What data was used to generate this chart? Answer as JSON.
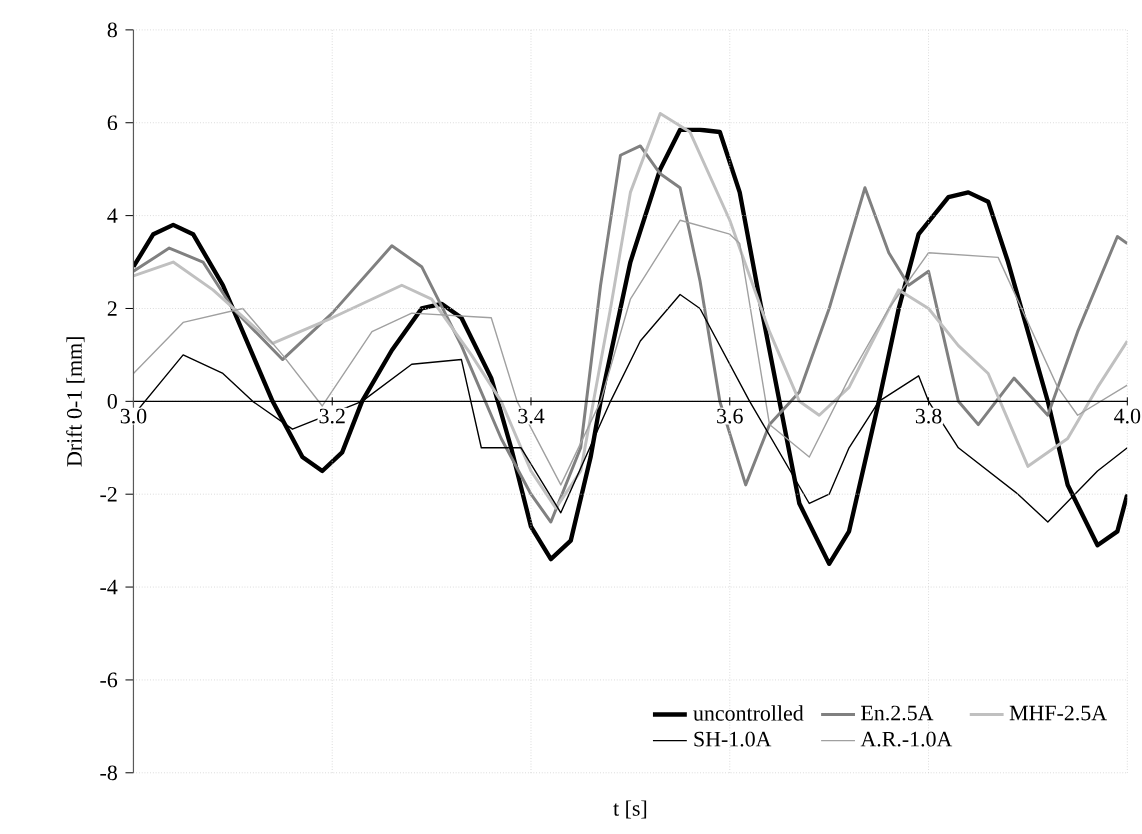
{
  "chart_data": {
    "type": "line",
    "xlabel": "t [s]",
    "ylabel": "Drift 0-1 [mm]",
    "xlim": [
      3.0,
      4.0
    ],
    "ylim": [
      -8,
      8
    ],
    "xticks": [
      {
        "value": 3.0,
        "label": "3.0"
      },
      {
        "value": 3.2,
        "label": "3.2"
      },
      {
        "value": 3.4,
        "label": "3.4"
      },
      {
        "value": 3.6,
        "label": "3.6"
      },
      {
        "value": 3.8,
        "label": "3.8"
      },
      {
        "value": 4.0,
        "label": "4.0"
      }
    ],
    "yticks": [
      -8,
      -6,
      -4,
      -2,
      0,
      2,
      4,
      6,
      8
    ],
    "grid": true,
    "legend": "bottom right",
    "marker": "none",
    "line_style": "solid",
    "series": [
      {
        "name": "uncontrolled",
        "color": "#000000",
        "x": [
          3.0,
          3.02,
          3.04,
          3.06,
          3.09,
          3.12,
          3.14,
          3.17,
          3.19,
          3.21,
          3.23,
          3.26,
          3.29,
          3.31,
          3.33,
          3.36,
          3.38,
          3.4,
          3.42,
          3.44,
          3.46,
          3.47,
          3.5,
          3.53,
          3.55,
          3.57,
          3.59,
          3.61,
          3.63,
          3.65,
          3.67,
          3.7,
          3.72,
          3.75,
          3.77,
          3.79,
          3.82,
          3.84,
          3.86,
          3.88,
          3.9,
          3.92,
          3.94,
          3.97,
          3.99,
          4.0
        ],
        "values": [
          2.9,
          3.6,
          3.8,
          3.6,
          2.5,
          1.0,
          0,
          -1.2,
          -1.5,
          -1.1,
          0,
          1.1,
          2.0,
          2.1,
          1.8,
          0.5,
          -1.0,
          -2.7,
          -3.4,
          -3.0,
          -1.2,
          0,
          3.0,
          5.0,
          5.85,
          5.85,
          5.8,
          4.5,
          2.2,
          0,
          -2.2,
          -3.5,
          -2.8,
          0,
          2.0,
          3.6,
          4.4,
          4.5,
          4.3,
          3.0,
          1.5,
          0,
          -1.8,
          -3.1,
          -2.8,
          -2.0
        ]
      },
      {
        "name": "En.2.5A",
        "color": "#808080",
        "x": [
          3.0,
          3.036,
          3.07,
          3.1,
          3.15,
          3.2,
          3.26,
          3.29,
          3.33,
          3.37,
          3.4,
          3.42,
          3.45,
          3.47,
          3.49,
          3.51,
          3.53,
          3.55,
          3.57,
          3.59,
          3.616,
          3.64,
          3.67,
          3.7,
          3.736,
          3.76,
          3.78,
          3.8,
          3.83,
          3.85,
          3.886,
          3.92,
          3.95,
          3.99,
          4.0
        ],
        "values": [
          2.8,
          3.3,
          3.0,
          2.0,
          0.9,
          1.9,
          3.35,
          2.9,
          1.2,
          -0.8,
          -2.0,
          -2.6,
          -1.0,
          2.5,
          5.3,
          5.5,
          4.9,
          4.6,
          2.6,
          0,
          -1.8,
          -0.5,
          0.2,
          2.0,
          4.6,
          3.2,
          2.5,
          2.8,
          0,
          -0.5,
          0.5,
          -0.3,
          1.5,
          3.55,
          3.4
        ]
      },
      {
        "name": "MHF-2.5A",
        "color": "#c0c0c0",
        "x": [
          3.0,
          3.04,
          3.08,
          3.14,
          3.2,
          3.27,
          3.3,
          3.34,
          3.37,
          3.4,
          3.425,
          3.45,
          3.48,
          3.5,
          3.53,
          3.56,
          3.6,
          3.64,
          3.67,
          3.69,
          3.72,
          3.77,
          3.8,
          3.83,
          3.86,
          3.9,
          3.94,
          3.97,
          4.0
        ],
        "values": [
          2.7,
          3.0,
          2.4,
          1.25,
          1.8,
          2.5,
          2.2,
          1.0,
          0,
          -1.5,
          -2.3,
          -1.5,
          2.0,
          4.5,
          6.2,
          5.8,
          3.9,
          1.5,
          0,
          -0.3,
          0.3,
          2.4,
          2.0,
          1.2,
          0.6,
          -1.4,
          -0.8,
          0.3,
          1.3
        ]
      },
      {
        "name": "SH-1.0A",
        "color": "#000000",
        "x": [
          3.0,
          3.05,
          3.09,
          3.12,
          3.16,
          3.23,
          3.28,
          3.33,
          3.35,
          3.39,
          3.43,
          3.48,
          3.51,
          3.55,
          3.57,
          3.62,
          3.68,
          3.7,
          3.72,
          3.75,
          3.79,
          3.8,
          3.83,
          3.89,
          3.92,
          3.97,
          4.0
        ],
        "values": [
          -0.3,
          1.0,
          0.6,
          0,
          -0.6,
          0,
          0.8,
          0.9,
          -1.0,
          -1.0,
          -2.4,
          0,
          1.3,
          2.3,
          2.0,
          0,
          -2.2,
          -2.0,
          -1.0,
          0,
          0.55,
          0,
          -1.0,
          -2.0,
          -2.6,
          -1.5,
          -1.0
        ]
      },
      {
        "name": "A.R.-1.0A",
        "color": "#a0a0a0",
        "x": [
          3.0,
          3.05,
          3.11,
          3.15,
          3.19,
          3.24,
          3.28,
          3.36,
          3.386,
          3.43,
          3.47,
          3.5,
          3.55,
          3.6,
          3.61,
          3.64,
          3.68,
          3.72,
          3.76,
          3.8,
          3.87,
          3.93,
          3.95,
          4.0
        ],
        "values": [
          0.6,
          1.7,
          2.0,
          1.0,
          -0.1,
          1.5,
          1.9,
          1.8,
          0,
          -1.8,
          0,
          2.2,
          3.9,
          3.6,
          3.4,
          -0.5,
          -1.2,
          0.5,
          2.0,
          3.2,
          3.1,
          0.3,
          -0.3,
          0.35
        ]
      }
    ]
  }
}
